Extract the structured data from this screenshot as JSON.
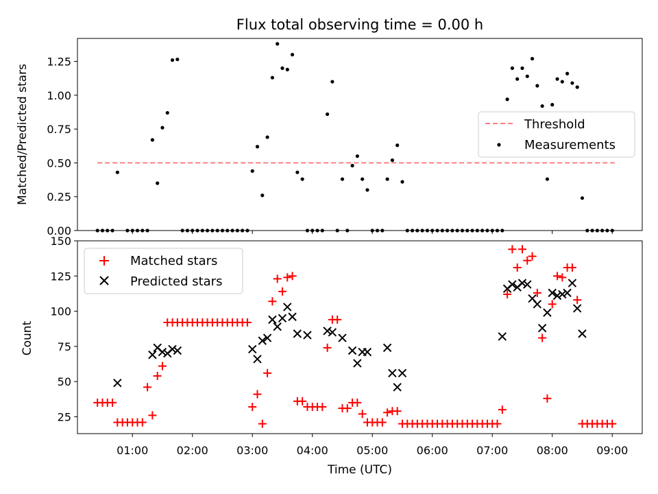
{
  "chart_data": [
    {
      "type": "scatter",
      "title": "Flux total observing time = 0.00 h",
      "ylabel": "Matched/Predicted stars",
      "ylim": [
        0,
        1.42
      ],
      "yticks": [
        "0.00",
        "0.25",
        "0.50",
        "0.75",
        "1.00",
        "1.25"
      ],
      "xlim": [
        "00:05",
        "09:30"
      ],
      "shared_x_ticks": true,
      "threshold": {
        "name": "Threshold",
        "value": 0.5,
        "x_range": [
          "00:25",
          "09:03"
        ],
        "color": "#ff7f7f",
        "style": "dashed"
      },
      "legend": {
        "position": "center-right",
        "entries": [
          "Threshold",
          "Measurements"
        ]
      },
      "series": [
        {
          "name": "Measurements",
          "color": "#000000",
          "marker": "dot",
          "x": [
            "00:25",
            "00:30",
            "00:35",
            "00:40",
            "00:45",
            "00:55",
            "01:00",
            "01:05",
            "01:10",
            "01:15",
            "01:20",
            "01:25",
            "01:30",
            "01:35",
            "01:40",
            "01:45",
            "01:50",
            "01:55",
            "02:00",
            "02:05",
            "02:10",
            "02:15",
            "02:20",
            "02:25",
            "02:30",
            "02:35",
            "02:40",
            "02:45",
            "02:50",
            "02:55",
            "03:00",
            "03:05",
            "03:10",
            "03:15",
            "03:20",
            "03:25",
            "03:30",
            "03:35",
            "03:40",
            "03:45",
            "03:50",
            "03:55",
            "04:00",
            "04:05",
            "04:10",
            "04:15",
            "04:20",
            "04:25",
            "04:30",
            "04:35",
            "04:40",
            "04:45",
            "04:50",
            "04:55",
            "05:00",
            "05:05",
            "05:10",
            "05:15",
            "05:20",
            "05:25",
            "05:30",
            "05:35",
            "05:40",
            "05:45",
            "05:50",
            "05:55",
            "06:00",
            "06:05",
            "06:10",
            "06:15",
            "06:20",
            "06:25",
            "06:30",
            "06:35",
            "06:40",
            "06:45",
            "06:50",
            "06:55",
            "07:00",
            "07:05",
            "07:10",
            "07:15",
            "07:20",
            "07:25",
            "07:30",
            "07:35",
            "07:40",
            "07:45",
            "07:50",
            "07:55",
            "08:00",
            "08:05",
            "08:10",
            "08:15",
            "08:20",
            "08:25",
            "08:30",
            "08:35",
            "08:40",
            "08:45",
            "08:50",
            "08:55",
            "09:00"
          ],
          "y": [
            0,
            0,
            0,
            0,
            0.43,
            0,
            0,
            0,
            0,
            0,
            0.67,
            0.35,
            0.76,
            0.87,
            1.26,
            1.265,
            0,
            0,
            0,
            0,
            0,
            0,
            0,
            0,
            0,
            0,
            0,
            0,
            0,
            0,
            0.44,
            0.62,
            0.26,
            0.69,
            1.13,
            1.38,
            1.2,
            1.19,
            1.3,
            0.43,
            0.38,
            0,
            0,
            0,
            0,
            0.86,
            1.1,
            0,
            0.38,
            0,
            0.48,
            0.55,
            0.38,
            0.3,
            0,
            0,
            0,
            0.38,
            0.52,
            0.63,
            0.36,
            0,
            0,
            0,
            0,
            0,
            0,
            0,
            0,
            0,
            0,
            0,
            0,
            0,
            0,
            0,
            0,
            0,
            0,
            0,
            0,
            0.97,
            1.2,
            1.12,
            1.2,
            1.14,
            1.27,
            1.07,
            0.92,
            0.38,
            0.93,
            1.12,
            1.1,
            1.16,
            1.09,
            1.06,
            0.24,
            0,
            0,
            0,
            0,
            0,
            0
          ]
        }
      ]
    },
    {
      "type": "scatter",
      "xlabel": "Time (UTC)",
      "ylabel": "Count",
      "ylim": [
        13,
        150
      ],
      "yticks": [
        "25",
        "50",
        "75",
        "100",
        "125",
        "150"
      ],
      "xticks": [
        "01:00",
        "02:00",
        "03:00",
        "04:00",
        "05:00",
        "06:00",
        "07:00",
        "08:00",
        "09:00"
      ],
      "xlim": [
        "00:05",
        "09:30"
      ],
      "legend": {
        "position": "top-left",
        "entries": [
          "Matched stars",
          "Predicted stars"
        ]
      },
      "series": [
        {
          "name": "Matched stars",
          "color": "#ff0000",
          "marker": "plus",
          "x": [
            "00:25",
            "00:30",
            "00:35",
            "00:40",
            "00:45",
            "00:50",
            "00:55",
            "01:00",
            "01:05",
            "01:10",
            "01:15",
            "01:20",
            "01:25",
            "01:30",
            "01:35",
            "01:40",
            "01:45",
            "01:50",
            "01:55",
            "02:00",
            "02:05",
            "02:10",
            "02:15",
            "02:20",
            "02:25",
            "02:30",
            "02:35",
            "02:40",
            "02:45",
            "02:50",
            "02:55",
            "03:00",
            "03:05",
            "03:10",
            "03:15",
            "03:20",
            "03:25",
            "03:30",
            "03:35",
            "03:40",
            "03:45",
            "03:50",
            "03:55",
            "04:00",
            "04:05",
            "04:10",
            "04:15",
            "04:20",
            "04:25",
            "04:30",
            "04:35",
            "04:40",
            "04:45",
            "04:50",
            "04:55",
            "05:00",
            "05:05",
            "05:10",
            "05:15",
            "05:20",
            "05:25",
            "05:30",
            "05:35",
            "05:40",
            "05:45",
            "05:50",
            "05:55",
            "06:00",
            "06:05",
            "06:10",
            "06:15",
            "06:20",
            "06:25",
            "06:30",
            "06:35",
            "06:40",
            "06:45",
            "06:50",
            "06:55",
            "07:00",
            "07:05",
            "07:10",
            "07:15",
            "07:20",
            "07:25",
            "07:30",
            "07:35",
            "07:40",
            "07:45",
            "07:50",
            "07:55",
            "08:00",
            "08:05",
            "08:10",
            "08:15",
            "08:20",
            "08:25",
            "08:30",
            "08:35",
            "08:40",
            "08:45",
            "08:50",
            "08:55",
            "09:00"
          ],
          "y": [
            35,
            35,
            35,
            35,
            21,
            21,
            21,
            21,
            21,
            21,
            46,
            26,
            54,
            61,
            92,
            92,
            92,
            92,
            92,
            92,
            92,
            92,
            92,
            92,
            92,
            92,
            92,
            92,
            92,
            92,
            92,
            32,
            41,
            20,
            56,
            107,
            123,
            114,
            124,
            125,
            36,
            36,
            32,
            32,
            32,
            32,
            74,
            94,
            94,
            31,
            31,
            35,
            35,
            27,
            21,
            21,
            21,
            21,
            28,
            29,
            29,
            20,
            20,
            20,
            20,
            20,
            20,
            20,
            20,
            20,
            20,
            20,
            20,
            20,
            20,
            20,
            20,
            20,
            20,
            20,
            20,
            30,
            112,
            144,
            131,
            144,
            136,
            139,
            113,
            81,
            38,
            105,
            125,
            124,
            131,
            131,
            108,
            20,
            20,
            20,
            20,
            20,
            20,
            20
          ]
        },
        {
          "name": "Predicted stars",
          "color": "#000000",
          "marker": "x",
          "x": [
            "00:45",
            "01:20",
            "01:25",
            "01:30",
            "01:35",
            "01:40",
            "01:45",
            "03:00",
            "03:05",
            "03:10",
            "03:15",
            "03:20",
            "03:25",
            "03:30",
            "03:35",
            "03:40",
            "03:45",
            "03:55",
            "04:15",
            "04:20",
            "04:30",
            "04:40",
            "04:45",
            "04:50",
            "04:55",
            "05:15",
            "05:20",
            "05:25",
            "05:30",
            "07:10",
            "07:15",
            "07:20",
            "07:25",
            "07:30",
            "07:35",
            "07:40",
            "07:45",
            "07:50",
            "07:55",
            "08:00",
            "08:05",
            "08:10",
            "08:15",
            "08:20",
            "08:25",
            "08:30"
          ],
          "y": [
            49,
            69,
            74,
            71,
            70,
            73,
            72,
            73,
            66,
            79,
            81,
            94,
            89,
            95,
            103,
            96,
            84,
            83,
            86,
            85,
            81,
            72,
            63,
            71,
            71,
            74,
            56,
            46,
            56,
            82,
            116,
            119,
            117,
            120,
            119,
            109,
            105,
            88,
            99,
            113,
            111,
            112,
            113,
            120,
            102,
            84
          ]
        }
      ]
    }
  ]
}
